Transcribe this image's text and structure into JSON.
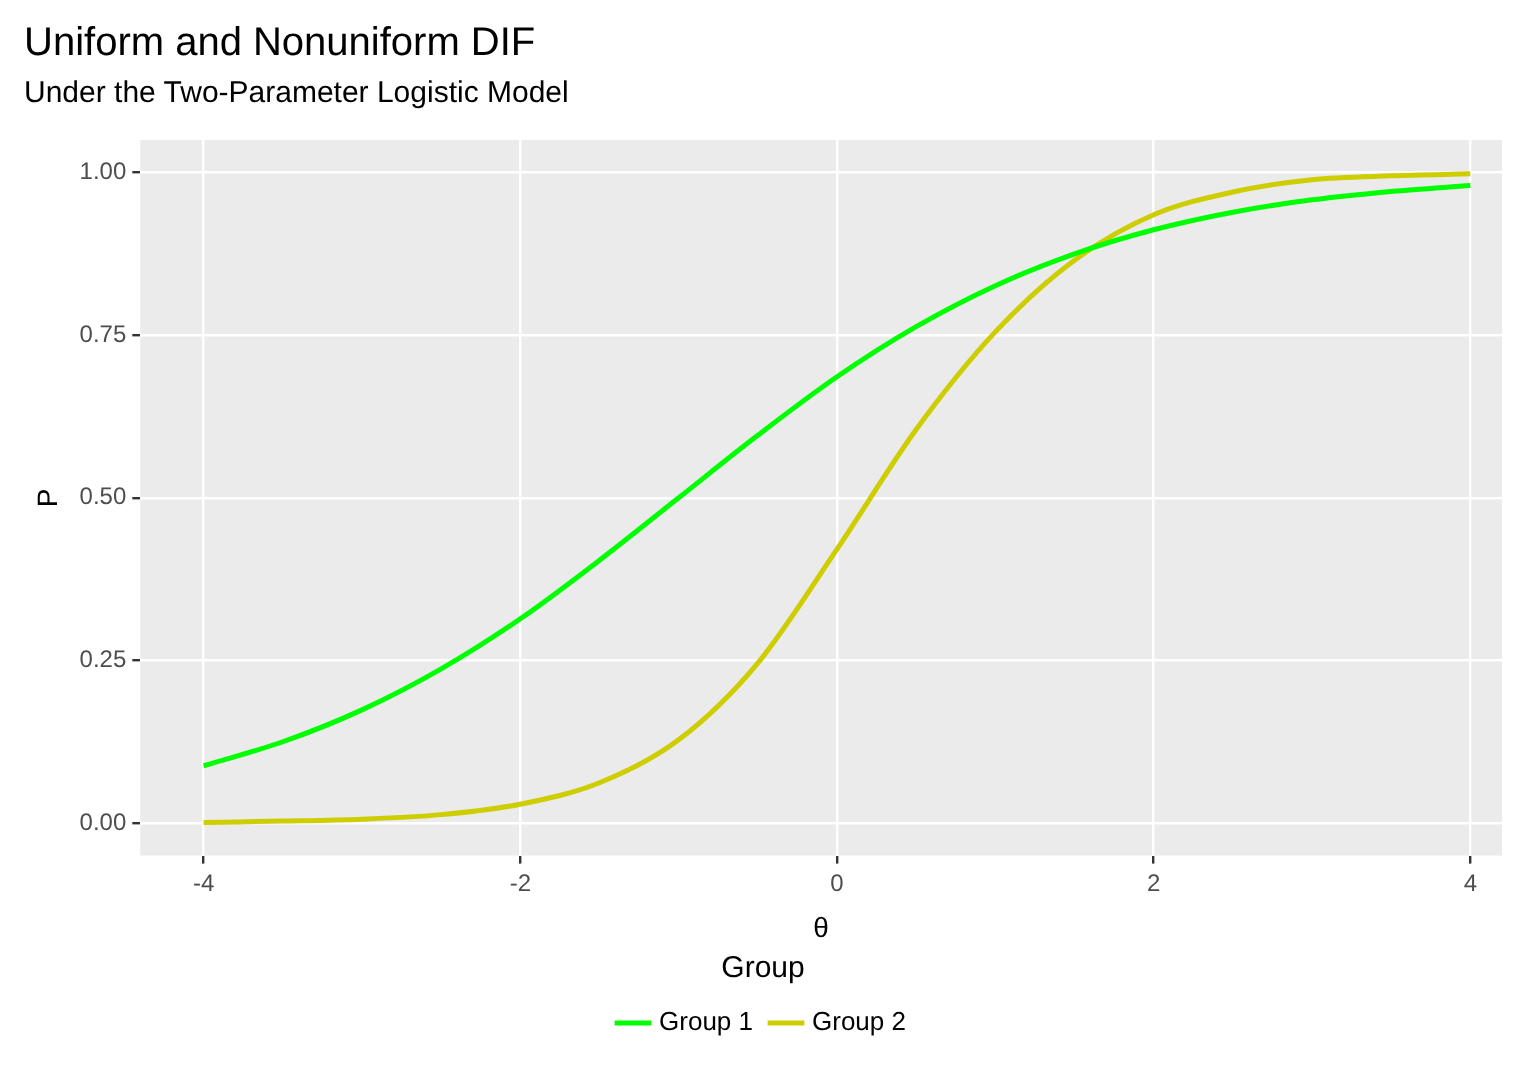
{
  "chart_data": {
    "type": "line",
    "title": "Uniform and Nonuniform DIF",
    "subtitle": "Under the Two-Parameter Logistic Model",
    "xlabel": "θ",
    "ylabel": "P",
    "legend_title": "Group",
    "x": [
      -4,
      -3.5,
      -3,
      -2.5,
      -2,
      -1.5,
      -1,
      -0.5,
      0,
      0.5,
      1,
      1.5,
      2,
      2.5,
      3,
      3.5,
      4
    ],
    "series": [
      {
        "name": "Group 1",
        "color": "#00ff00",
        "values": [
          0.088,
          0.125,
          0.174,
          0.237,
          0.314,
          0.404,
          0.5,
          0.596,
          0.686,
          0.763,
          0.826,
          0.875,
          0.912,
          0.939,
          0.958,
          0.971,
          0.98
        ]
      },
      {
        "name": "Group 2",
        "color": "#cdcd00",
        "values": [
          0.001,
          0.003,
          0.006,
          0.013,
          0.029,
          0.062,
          0.128,
          0.246,
          0.421,
          0.605,
          0.755,
          0.865,
          0.935,
          0.97,
          0.989,
          0.995,
          0.998
        ]
      }
    ],
    "xlim": [
      -4.4,
      4.2
    ],
    "xticks": [
      -4,
      -2,
      0,
      2,
      4
    ],
    "ylim": [
      -0.05,
      1.05
    ],
    "yticks": [
      {
        "value": 0,
        "label": "0.00"
      },
      {
        "value": 0.25,
        "label": "0.25"
      },
      {
        "value": 0.5,
        "label": "0.50"
      },
      {
        "value": 0.75,
        "label": "0.75"
      },
      {
        "value": 1,
        "label": "1.00"
      }
    ],
    "grid": true,
    "legend": "bottom",
    "marker": "none",
    "line_style": "solid"
  }
}
